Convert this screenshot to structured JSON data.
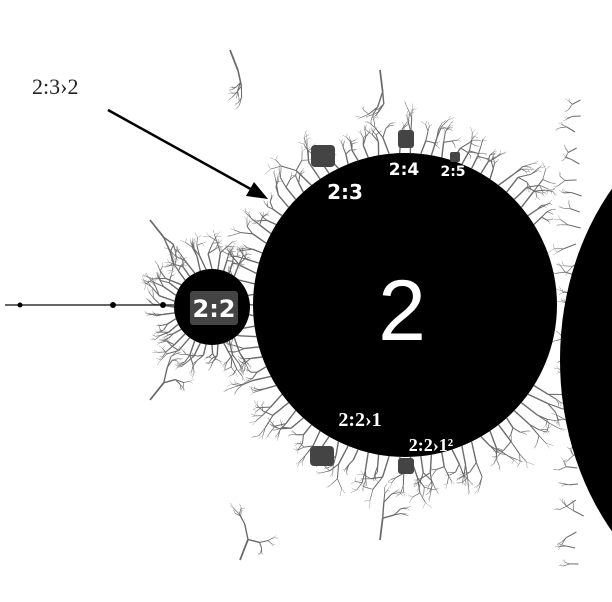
{
  "labels": {
    "main_component": "2",
    "left_bulb": "2:2",
    "bulb_2_3": "2:3",
    "bulb_2_4": "2:4",
    "bulb_2_5": "2:5",
    "bulb_2_2_1": "2:2›1",
    "bulb_2_2_1sq": "2:2›1²",
    "arrow_label": "2:3›2"
  },
  "colors": {
    "background": "#ffffff",
    "set": "#000000",
    "filament": "#5a5a5a",
    "minibrot": "#444444",
    "text_on_set": "#ffffff",
    "text_on_background": "#222222"
  }
}
